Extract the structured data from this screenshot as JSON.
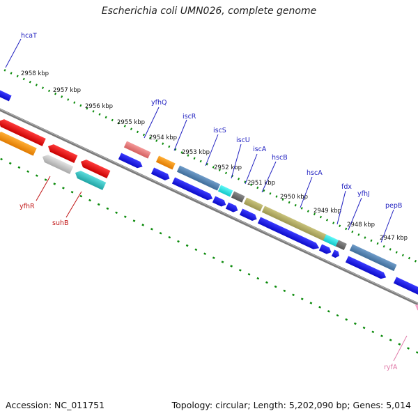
{
  "title": "Escherichia coli UMN026, complete genome",
  "footer": {
    "accession": "Accession: NC_011751",
    "summary": "Topology: circular; Length: 5,202,090 bp; Genes: 5,014"
  },
  "colors": {
    "backbone": "#7a7a7a",
    "tick": "#0a8a0a",
    "label_forward": "#1f1fc0",
    "label_reverse": "#c01414",
    "label_rna": "#e07aa8"
  },
  "ruler": {
    "unit": "kbp",
    "labels": [
      "2958 kbp",
      "2957 kbp",
      "2956 kbp",
      "2955 kbp",
      "2954 kbp",
      "2953 kbp",
      "2952 kbp",
      "2951 kbp",
      "2950 kbp",
      "2949 kbp",
      "2948 kbp",
      "2947 kbp"
    ]
  },
  "genes": [
    {
      "name": "hcaT",
      "strand": "forward",
      "color": "#1515e0"
    },
    {
      "name": "yfhQ",
      "strand": "forward",
      "color": "#1515e0"
    },
    {
      "name": "iscR",
      "strand": "forward",
      "color": "#1515e0"
    },
    {
      "name": "iscS",
      "strand": "forward",
      "color": "#1515e0"
    },
    {
      "name": "iscU",
      "strand": "forward",
      "color": "#1515e0"
    },
    {
      "name": "iscA",
      "strand": "forward",
      "color": "#1515e0"
    },
    {
      "name": "hscB",
      "strand": "forward",
      "color": "#1515e0"
    },
    {
      "name": "hscA",
      "strand": "forward",
      "color": "#1515e0"
    },
    {
      "name": "fdx",
      "strand": "forward",
      "color": "#1515e0"
    },
    {
      "name": "yfhJ",
      "strand": "forward",
      "color": "#1515e0"
    },
    {
      "name": "pepB",
      "strand": "forward",
      "color": "#1515e0"
    },
    {
      "name": "yfhR",
      "strand": "reverse",
      "color": "#e81414"
    },
    {
      "name": "suhB",
      "strand": "reverse",
      "color": "#e81414"
    },
    {
      "name": "ryfA",
      "strand": "rna",
      "color": "#f4a6c8"
    }
  ]
}
